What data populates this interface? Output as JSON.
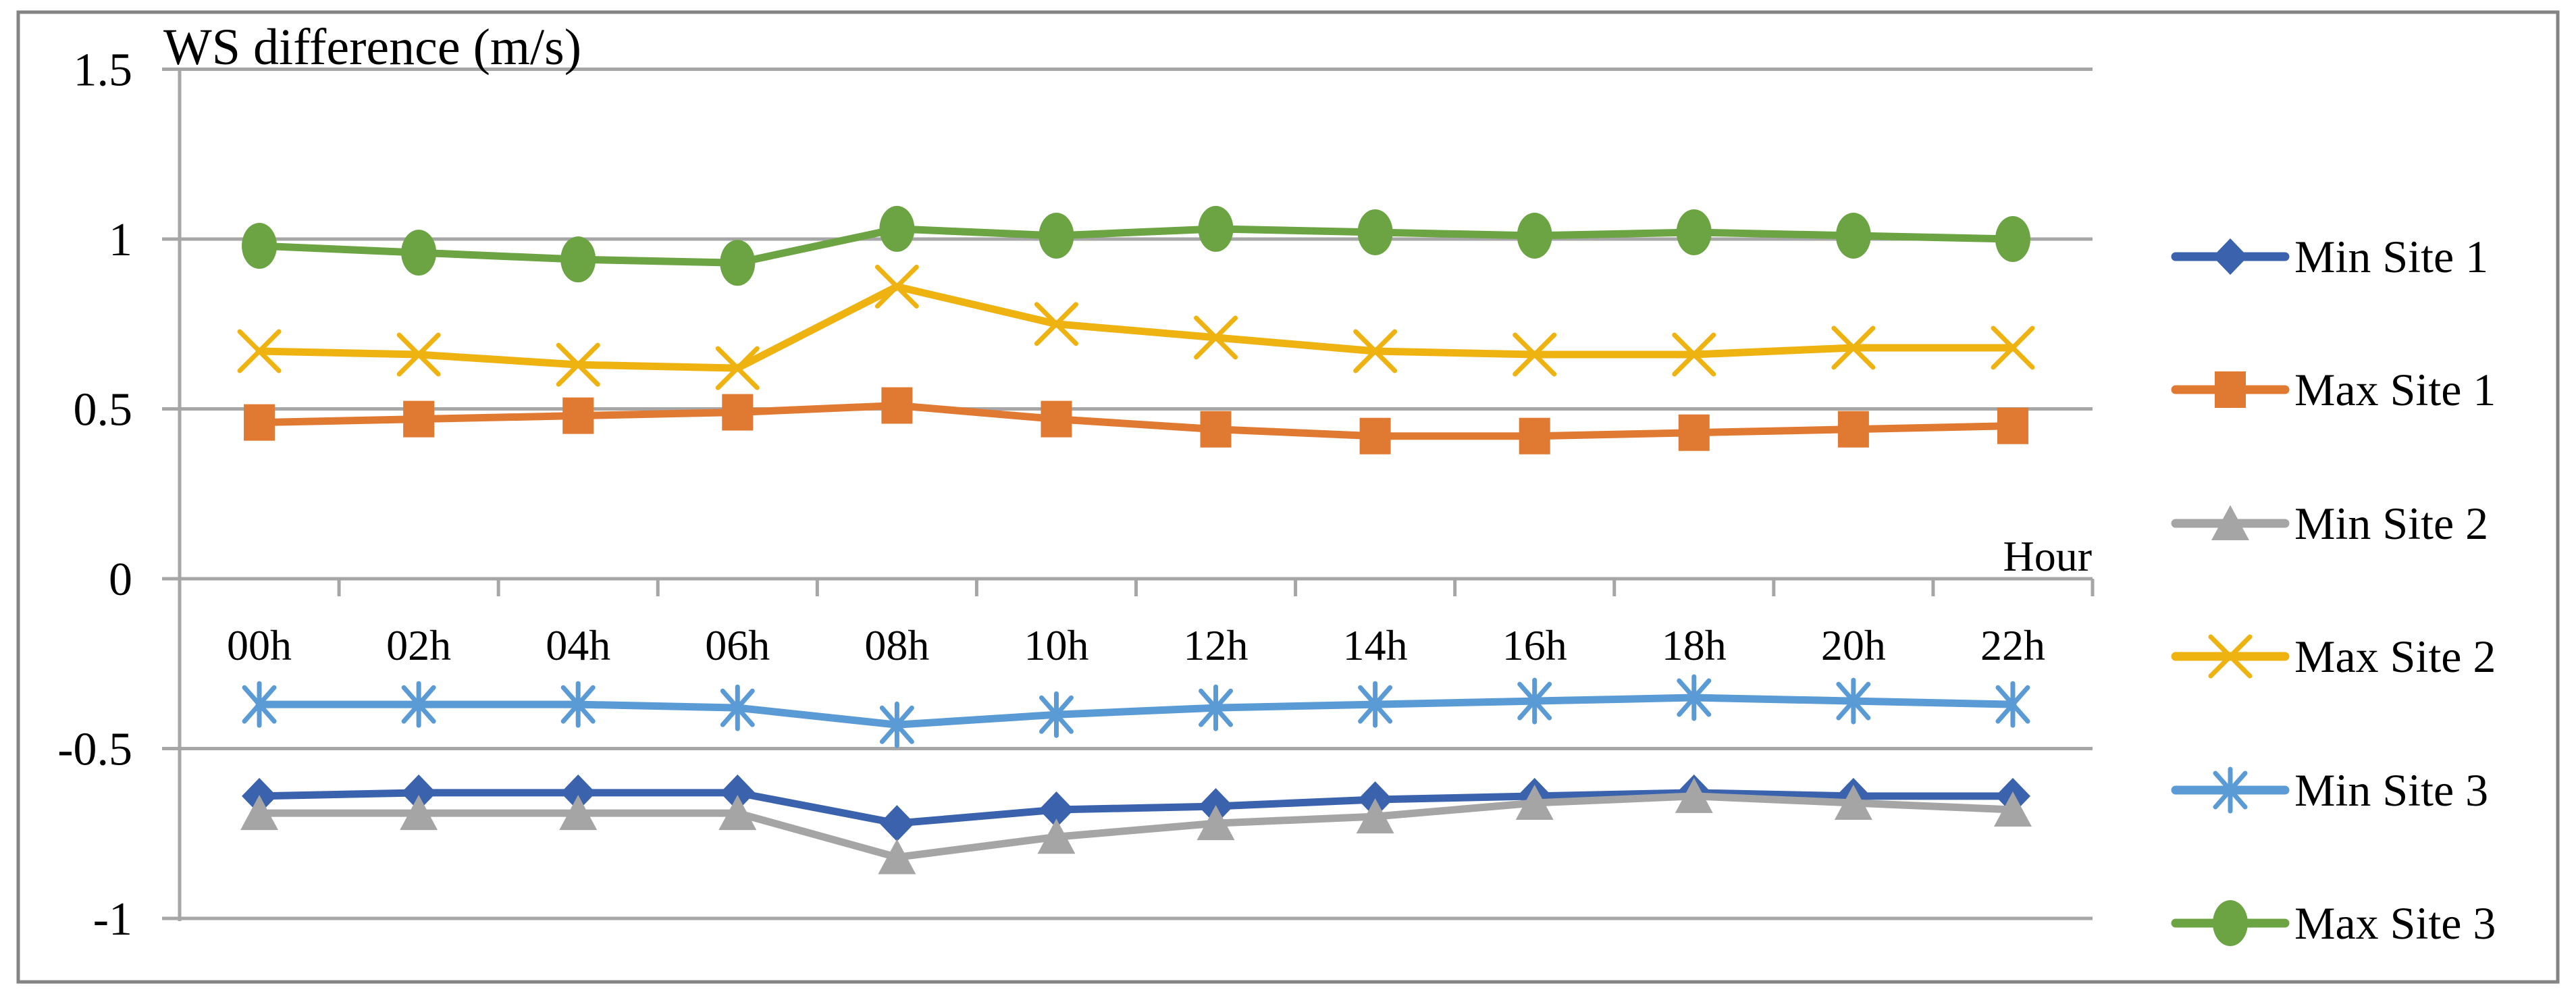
{
  "chart_data": {
    "type": "line",
    "title": "WS difference (m/s)",
    "xlabel": "Hour",
    "ylabel": "WS difference (m/s)",
    "categories": [
      "00h",
      "02h",
      "04h",
      "06h",
      "08h",
      "10h",
      "12h",
      "14h",
      "16h",
      "18h",
      "20h",
      "22h"
    ],
    "series": [
      {
        "name": "Min Site 1",
        "color": "#3B63AD",
        "marker": "diamond",
        "values": [
          -0.64,
          -0.63,
          -0.63,
          -0.63,
          -0.72,
          -0.68,
          -0.67,
          -0.65,
          -0.64,
          -0.63,
          -0.64,
          -0.64
        ]
      },
      {
        "name": "Max Site 1",
        "color": "#E07A33",
        "marker": "square",
        "values": [
          0.46,
          0.47,
          0.48,
          0.49,
          0.51,
          0.47,
          0.44,
          0.42,
          0.42,
          0.43,
          0.44,
          0.45
        ]
      },
      {
        "name": "Min Site 2",
        "color": "#A5A5A5",
        "marker": "triangle",
        "values": [
          -0.69,
          -0.69,
          -0.69,
          -0.69,
          -0.82,
          -0.76,
          -0.72,
          -0.7,
          -0.66,
          -0.64,
          -0.66,
          -0.68
        ]
      },
      {
        "name": "Max Site 2",
        "color": "#EEB211",
        "marker": "x",
        "values": [
          0.67,
          0.66,
          0.63,
          0.62,
          0.86,
          0.75,
          0.71,
          0.67,
          0.66,
          0.66,
          0.68,
          0.68
        ]
      },
      {
        "name": "Min Site 3",
        "color": "#5B9BD5",
        "marker": "asterisk",
        "values": [
          -0.37,
          -0.37,
          -0.37,
          -0.38,
          -0.43,
          -0.4,
          -0.38,
          -0.37,
          -0.36,
          -0.35,
          -0.36,
          -0.37
        ]
      },
      {
        "name": "Max Site 3",
        "color": "#6CA444",
        "marker": "circle",
        "values": [
          0.98,
          0.96,
          0.94,
          0.93,
          1.03,
          1.01,
          1.03,
          1.02,
          1.01,
          1.02,
          1.01,
          1.0
        ]
      }
    ],
    "y_ticks": [
      1.5,
      1,
      0.5,
      0,
      -0.5,
      -1
    ],
    "y_tick_labels": [
      "1.5",
      "1",
      "0.5",
      "0",
      "-0.5",
      "-1"
    ],
    "ylim": [
      -1.15,
      1.5
    ],
    "grid": true,
    "legend_position": "right"
  },
  "colors": {
    "axis": "#A6A6A6",
    "frame": "#848484",
    "text": "#000000",
    "background": "#FFFFFF"
  }
}
